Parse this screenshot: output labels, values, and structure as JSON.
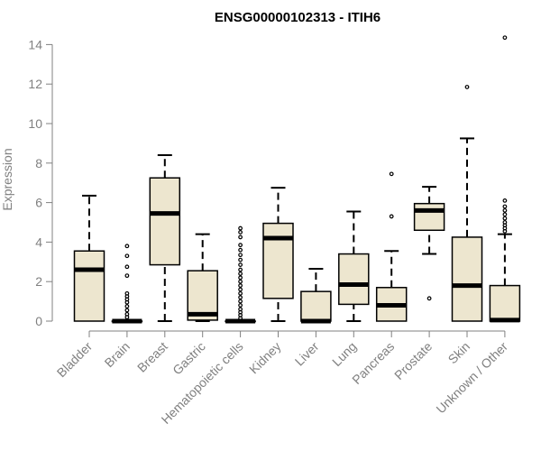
{
  "chart_data": {
    "type": "boxplot",
    "title": "ENSG00000102313 - ITIH6",
    "xlabel": "",
    "ylabel": "Expression",
    "ylim": [
      0,
      14
    ],
    "yticks": [
      0,
      2,
      4,
      6,
      8,
      10,
      12,
      14
    ],
    "grid": false,
    "box_fill": "#ede6cf",
    "categories": [
      "Bladder",
      "Brain",
      "Breast",
      "Gastric",
      "Hematopoietic cells",
      "Kidney",
      "Liver",
      "Lung",
      "Pancreas",
      "Prostate",
      "Skin",
      "Unknown / Other"
    ],
    "boxes": [
      {
        "name": "Bladder",
        "whisker_low": 0,
        "q1": 0,
        "median": 2.6,
        "q3": 3.55,
        "whisker_high": 6.35,
        "outliers": []
      },
      {
        "name": "Brain",
        "whisker_low": 0,
        "q1": 0,
        "median": 0,
        "q3": 0,
        "whisker_high": 0,
        "outliers": [
          3.8,
          3.3,
          2.75,
          2.3,
          1.4,
          1.25,
          1.1,
          0.95,
          0.75,
          0.55,
          0.35,
          0.2
        ]
      },
      {
        "name": "Breast",
        "whisker_low": 0,
        "q1": 2.85,
        "median": 5.45,
        "q3": 7.25,
        "whisker_high": 8.4,
        "outliers": []
      },
      {
        "name": "Gastric",
        "whisker_low": 0,
        "q1": 0.05,
        "median": 0.35,
        "q3": 2.55,
        "whisker_high": 4.4,
        "outliers": []
      },
      {
        "name": "Hematopoietic cells",
        "whisker_low": 0,
        "q1": 0,
        "median": 0,
        "q3": 0,
        "whisker_high": 0,
        "outliers": [
          4.7,
          4.5,
          4.25,
          3.85,
          3.6,
          3.35,
          3.1,
          2.85,
          2.6,
          2.4,
          2.2,
          2.0,
          1.8,
          1.6,
          1.4,
          1.2,
          1.0,
          0.8,
          0.6,
          0.45,
          0.3,
          0.15
        ]
      },
      {
        "name": "Kidney",
        "whisker_low": 0,
        "q1": 1.15,
        "median": 4.2,
        "q3": 4.95,
        "whisker_high": 6.75,
        "outliers": []
      },
      {
        "name": "Liver",
        "whisker_low": 0,
        "q1": 0,
        "median": 0,
        "q3": 1.5,
        "whisker_high": 2.65,
        "outliers": []
      },
      {
        "name": "Lung",
        "whisker_low": 0,
        "q1": 0.85,
        "median": 1.85,
        "q3": 3.4,
        "whisker_high": 5.55,
        "outliers": []
      },
      {
        "name": "Pancreas",
        "whisker_low": 0,
        "q1": 0,
        "median": 0.8,
        "q3": 1.7,
        "whisker_high": 3.55,
        "outliers": [
          7.45,
          5.3
        ]
      },
      {
        "name": "Prostate",
        "whisker_low": 3.4,
        "q1": 4.6,
        "median": 5.6,
        "q3": 5.95,
        "whisker_high": 6.8,
        "outliers": [
          1.15
        ]
      },
      {
        "name": "Skin",
        "whisker_low": 0,
        "q1": 0,
        "median": 1.8,
        "q3": 4.25,
        "whisker_high": 9.25,
        "outliers": [
          11.85
        ]
      },
      {
        "name": "Unknown / Other",
        "whisker_low": 0,
        "q1": 0,
        "median": 0.05,
        "q3": 1.8,
        "whisker_high": 4.4,
        "outliers": [
          14.35,
          6.1,
          5.8,
          5.6,
          5.4,
          5.2,
          5.0,
          4.85,
          4.7,
          4.55
        ]
      }
    ]
  }
}
